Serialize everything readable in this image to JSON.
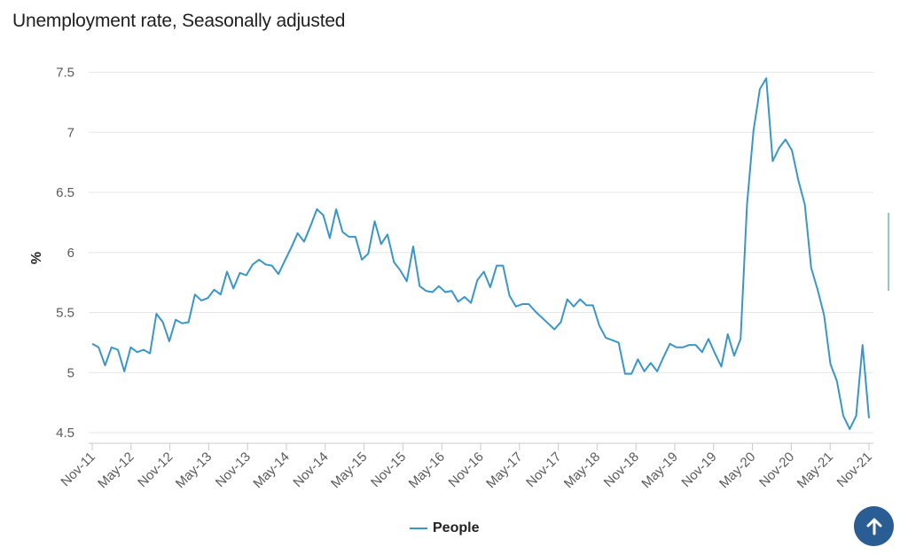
{
  "page": {
    "scroll_top_icon": "arrow-up-icon"
  },
  "chart_data": {
    "type": "line",
    "title": "Unemployment rate, Seasonally adjusted",
    "ylabel": "%",
    "xlabel": "",
    "ylim": [
      4.45,
      7.6
    ],
    "yticks": [
      4.5,
      5,
      5.5,
      6,
      6.5,
      7,
      7.5
    ],
    "ytick_labels": [
      "4.5",
      "5",
      "5.5",
      "6",
      "6.5",
      "7",
      "7.5"
    ],
    "xtick_labels": [
      "Nov-11",
      "May-12",
      "Nov-12",
      "May-13",
      "Nov-13",
      "May-14",
      "Nov-14",
      "May-15",
      "Nov-15",
      "May-16",
      "Nov-16",
      "May-17",
      "Nov-17",
      "May-18",
      "Nov-18",
      "May-19",
      "Nov-19",
      "May-20",
      "Nov-20",
      "May-21",
      "Nov-21"
    ],
    "x_start": "Nov-11",
    "x_end": "Nov-21",
    "grid": true,
    "legend_position": "bottom-center",
    "series": [
      {
        "name": "People",
        "color": "#3a96c9",
        "values": [
          5.24,
          5.21,
          5.06,
          5.21,
          5.19,
          5.01,
          5.21,
          5.17,
          5.19,
          5.16,
          5.49,
          5.42,
          5.26,
          5.44,
          5.41,
          5.42,
          5.65,
          5.6,
          5.62,
          5.69,
          5.65,
          5.84,
          5.7,
          5.83,
          5.81,
          5.9,
          5.94,
          5.9,
          5.89,
          5.82,
          5.93,
          6.04,
          6.16,
          6.09,
          6.22,
          6.36,
          6.31,
          6.12,
          6.36,
          6.17,
          6.13,
          6.13,
          5.94,
          5.99,
          6.26,
          6.07,
          6.15,
          5.92,
          5.85,
          5.76,
          6.05,
          5.72,
          5.68,
          5.67,
          5.72,
          5.67,
          5.68,
          5.59,
          5.63,
          5.58,
          5.77,
          5.84,
          5.71,
          5.89,
          5.89,
          5.64,
          5.55,
          5.57,
          5.57,
          5.51,
          5.46,
          5.41,
          5.36,
          5.42,
          5.61,
          5.55,
          5.61,
          5.56,
          5.56,
          5.39,
          5.29,
          5.27,
          5.25,
          4.99,
          4.99,
          5.11,
          5.01,
          5.08,
          5.01,
          5.13,
          5.24,
          5.21,
          5.21,
          5.23,
          5.23,
          5.17,
          5.28,
          5.16,
          5.05,
          5.32,
          5.14,
          5.28,
          6.4,
          7.01,
          7.36,
          7.45,
          6.76,
          6.87,
          6.94,
          6.85,
          6.6,
          6.4,
          5.87,
          5.69,
          5.48,
          5.07,
          4.93,
          4.64,
          4.53,
          4.64,
          5.23,
          4.62
        ]
      }
    ]
  }
}
